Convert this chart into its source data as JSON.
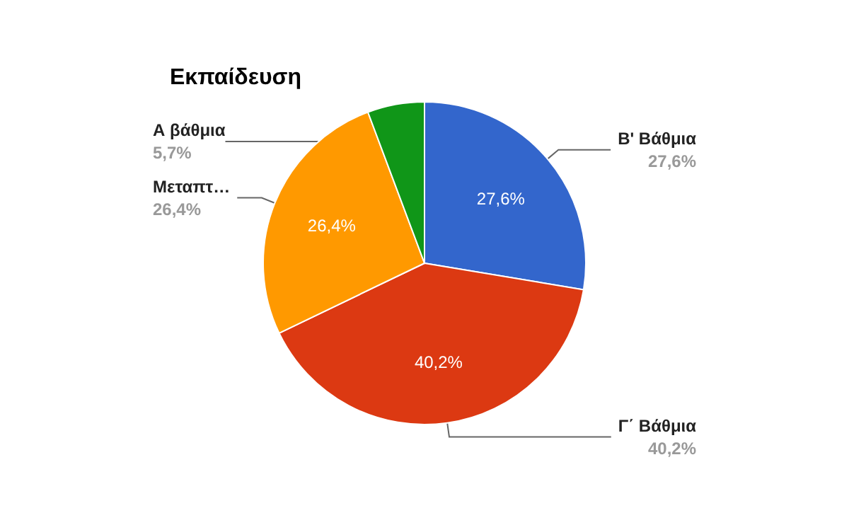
{
  "chart_data": {
    "type": "pie",
    "title": "Εκπαίδευση",
    "categories": [
      "Β' Βάθμια",
      "Γ΄ Βάθμια",
      "Μεταπτ…",
      "Α βάθμια"
    ],
    "values": [
      27.6,
      40.2,
      26.4,
      5.7
    ],
    "colors": [
      "#3366cc",
      "#dc3912",
      "#ff9900",
      "#109618"
    ],
    "value_labels": [
      "27,6%",
      "40,2%",
      "26,4%",
      "5,7%"
    ],
    "legend": false
  }
}
